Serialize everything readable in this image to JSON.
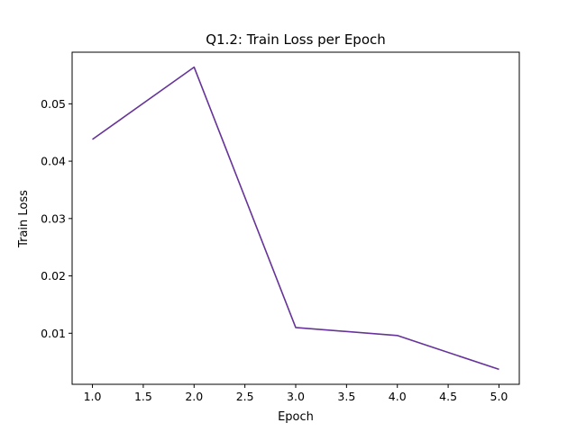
{
  "chart_data": {
    "type": "line",
    "title": "Q1.2: Train Loss per Epoch",
    "xlabel": "Epoch",
    "ylabel": "Train Loss",
    "x": [
      1.0,
      2.0,
      3.0,
      4.0,
      5.0
    ],
    "series": [
      {
        "values": [
          0.0438,
          0.0564,
          0.011,
          0.0096,
          0.0037
        ]
      }
    ],
    "xlim": [
      0.8,
      5.2
    ],
    "ylim": [
      0.0011,
      0.059
    ],
    "xticks": [
      1.0,
      1.5,
      2.0,
      2.5,
      3.0,
      3.5,
      4.0,
      4.5,
      5.0
    ],
    "xtick_labels": [
      "1.0",
      "1.5",
      "2.0",
      "2.5",
      "3.0",
      "3.5",
      "4.0",
      "4.5",
      "5.0"
    ],
    "yticks": [
      0.01,
      0.02,
      0.03,
      0.04,
      0.05
    ],
    "ytick_labels": [
      "0.01",
      "0.02",
      "0.03",
      "0.04",
      "0.05"
    ],
    "grid": false,
    "colors": {
      "line": "#663399",
      "axes": "#000000"
    }
  }
}
